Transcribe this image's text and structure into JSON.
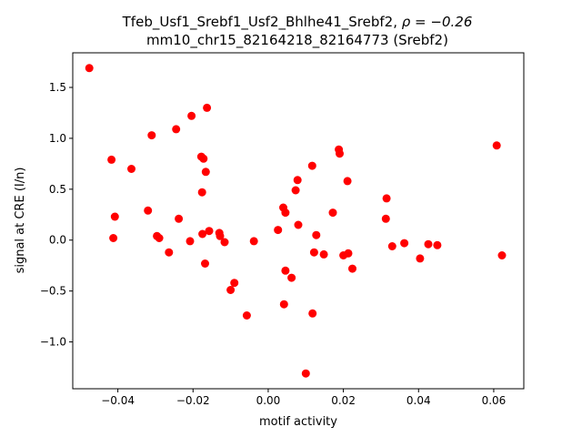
{
  "chart_data": {
    "type": "scatter",
    "title_line1_prefix": "Tfeb_Usf1_Srebf1_Usf2_Bhlhe41_Srebf2, ",
    "title_line1_rho": "ρ = −0.26",
    "title_line2": "mm10_chr15_82164218_82164773 (Srebf2)",
    "xlabel": "motif activity",
    "ylabel": "signal at CRE (I/n)",
    "xlim": [
      -0.052,
      0.068
    ],
    "ylim": [
      -1.46,
      1.84
    ],
    "xticks": [
      {
        "v": -0.04,
        "label": "−0.04"
      },
      {
        "v": -0.02,
        "label": "−0.02"
      },
      {
        "v": 0.0,
        "label": "0.00"
      },
      {
        "v": 0.02,
        "label": "0.02"
      },
      {
        "v": 0.04,
        "label": "0.04"
      },
      {
        "v": 0.06,
        "label": "0.06"
      }
    ],
    "yticks": [
      {
        "v": -1.0,
        "label": "−1.0"
      },
      {
        "v": -0.5,
        "label": "−0.5"
      },
      {
        "v": 0.0,
        "label": "0.0"
      },
      {
        "v": 0.5,
        "label": "0.5"
      },
      {
        "v": 1.0,
        "label": "1.0"
      },
      {
        "v": 1.5,
        "label": "1.5"
      }
    ],
    "grid": false,
    "marker_color": "#ff0000",
    "points": [
      [
        -0.0476,
        1.69
      ],
      [
        -0.0417,
        0.79
      ],
      [
        -0.0412,
        0.02
      ],
      [
        -0.0408,
        0.23
      ],
      [
        -0.0364,
        0.7
      ],
      [
        -0.032,
        0.29
      ],
      [
        -0.031,
        1.03
      ],
      [
        -0.0296,
        0.04
      ],
      [
        -0.029,
        0.02
      ],
      [
        -0.0264,
        -0.12
      ],
      [
        -0.0245,
        1.09
      ],
      [
        -0.0238,
        0.21
      ],
      [
        -0.0208,
        -0.01
      ],
      [
        -0.0204,
        1.22
      ],
      [
        -0.0178,
        0.82
      ],
      [
        -0.0176,
        0.47
      ],
      [
        -0.0175,
        0.06
      ],
      [
        -0.0172,
        0.8
      ],
      [
        -0.0168,
        -0.23
      ],
      [
        -0.0166,
        0.67
      ],
      [
        -0.0163,
        1.3
      ],
      [
        -0.0157,
        0.09
      ],
      [
        -0.013,
        0.07
      ],
      [
        -0.0128,
        0.04
      ],
      [
        -0.0116,
        -0.02
      ],
      [
        -0.01,
        -0.49
      ],
      [
        -0.009,
        -0.42
      ],
      [
        -0.0057,
        -0.74
      ],
      [
        -0.0038,
        -0.01
      ],
      [
        0.0026,
        0.1
      ],
      [
        0.004,
        0.32
      ],
      [
        0.0042,
        -0.63
      ],
      [
        0.0046,
        -0.3
      ],
      [
        0.0046,
        0.27
      ],
      [
        0.0062,
        -0.37
      ],
      [
        0.0073,
        0.49
      ],
      [
        0.0078,
        0.59
      ],
      [
        0.008,
        0.15
      ],
      [
        0.01,
        -1.31
      ],
      [
        0.0117,
        0.73
      ],
      [
        0.0118,
        -0.72
      ],
      [
        0.0122,
        -0.12
      ],
      [
        0.0128,
        0.05
      ],
      [
        0.0148,
        -0.14
      ],
      [
        0.0172,
        0.27
      ],
      [
        0.0188,
        0.89
      ],
      [
        0.019,
        0.85
      ],
      [
        0.02,
        -0.15
      ],
      [
        0.0211,
        0.58
      ],
      [
        0.0213,
        -0.13
      ],
      [
        0.0224,
        -0.28
      ],
      [
        0.0313,
        0.21
      ],
      [
        0.0315,
        0.41
      ],
      [
        0.033,
        -0.06
      ],
      [
        0.0362,
        -0.03
      ],
      [
        0.0404,
        -0.18
      ],
      [
        0.0426,
        -0.04
      ],
      [
        0.045,
        -0.05
      ],
      [
        0.0608,
        0.93
      ],
      [
        0.0622,
        -0.15
      ]
    ]
  }
}
